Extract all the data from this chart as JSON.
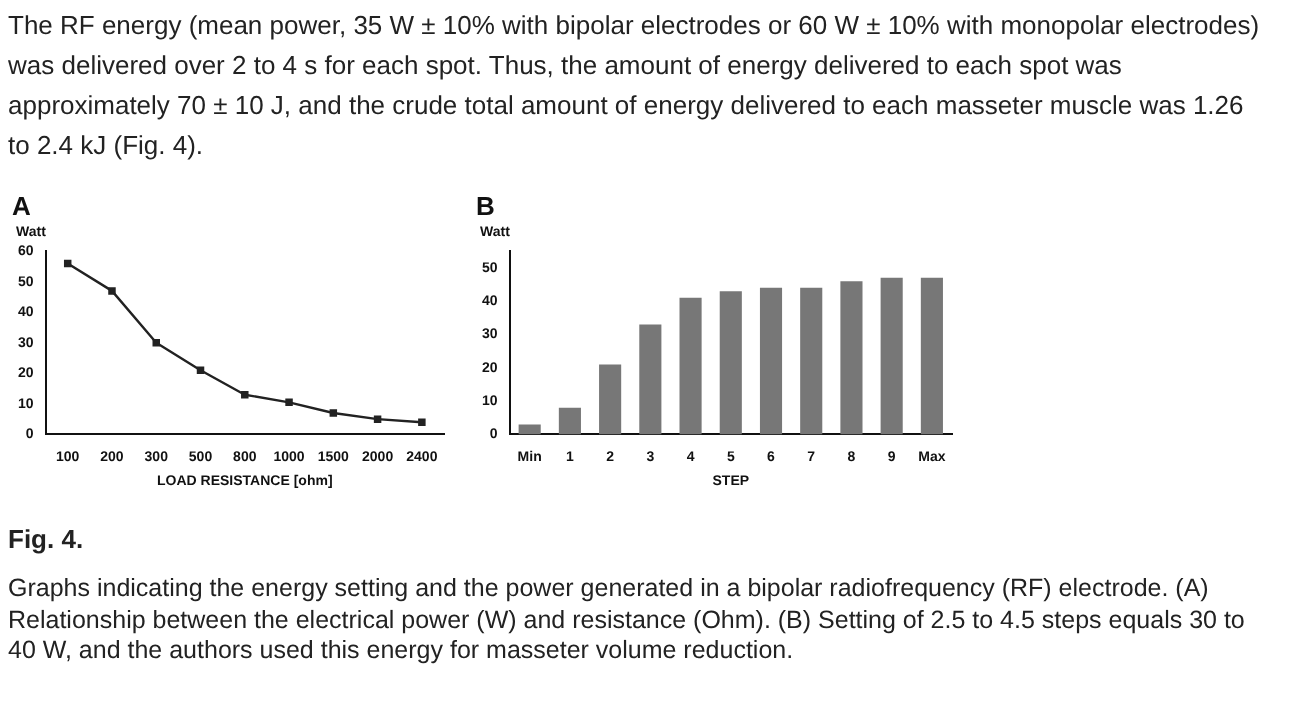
{
  "chart_data": [
    {
      "type": "other",
      "annotations": [
        "The RF energy (mean power, 35 W ± 10% with bipolar electrodes or 60 W ± 10% with monopolar electrodes) was delivered over 2 to 4 s for each spot. Thus, the amount of energy delivered to each spot was approximately 70 ± 10 J, and the crude total amount of energy delivered to each masseter muscle was 1.26 to 2.4 kJ (Fig. 4)."
      ]
    },
    {
      "type": "line",
      "title": "A",
      "xlabel": "LOAD RESISTANCE [ohm]",
      "ylabel": "Watt",
      "categories": [
        "100",
        "200",
        "300",
        "500",
        "800",
        "1000",
        "1500",
        "2000",
        "2400"
      ],
      "series": [
        {
          "color": "#222222",
          "values": [
            56,
            47,
            30,
            21,
            13,
            10.5,
            7,
            5,
            4
          ]
        }
      ],
      "ylim": [
        0,
        60
      ],
      "yticks": [
        0,
        10,
        20,
        30,
        40,
        50,
        60
      ],
      "grid": false,
      "marker": "square"
    },
    {
      "type": "bar",
      "title": "B",
      "xlabel": "STEP",
      "ylabel": "Watt",
      "categories": [
        "Min",
        "1",
        "2",
        "3",
        "4",
        "5",
        "6",
        "7",
        "8",
        "9",
        "Max"
      ],
      "series": [
        {
          "color": "#777777",
          "values": [
            3,
            8,
            21,
            33,
            41,
            43,
            44,
            44,
            46,
            47,
            47
          ]
        }
      ],
      "ylim": [
        0,
        55
      ],
      "yticks": [
        0,
        10,
        20,
        30,
        40,
        50
      ],
      "grid": false
    },
    {
      "type": "other",
      "title": "Fig. 4.",
      "annotations": [
        "Graphs indicating the energy setting and the power generated in a bipolar radiofrequency (RF) electrode. (A) Relationship between the electrical power (W) and resistance (Ohm). (B) Setting of 2.5 to 4.5 steps equals 30 to 40 W, and the authors used this energy for masseter volume reduction."
      ]
    }
  ]
}
